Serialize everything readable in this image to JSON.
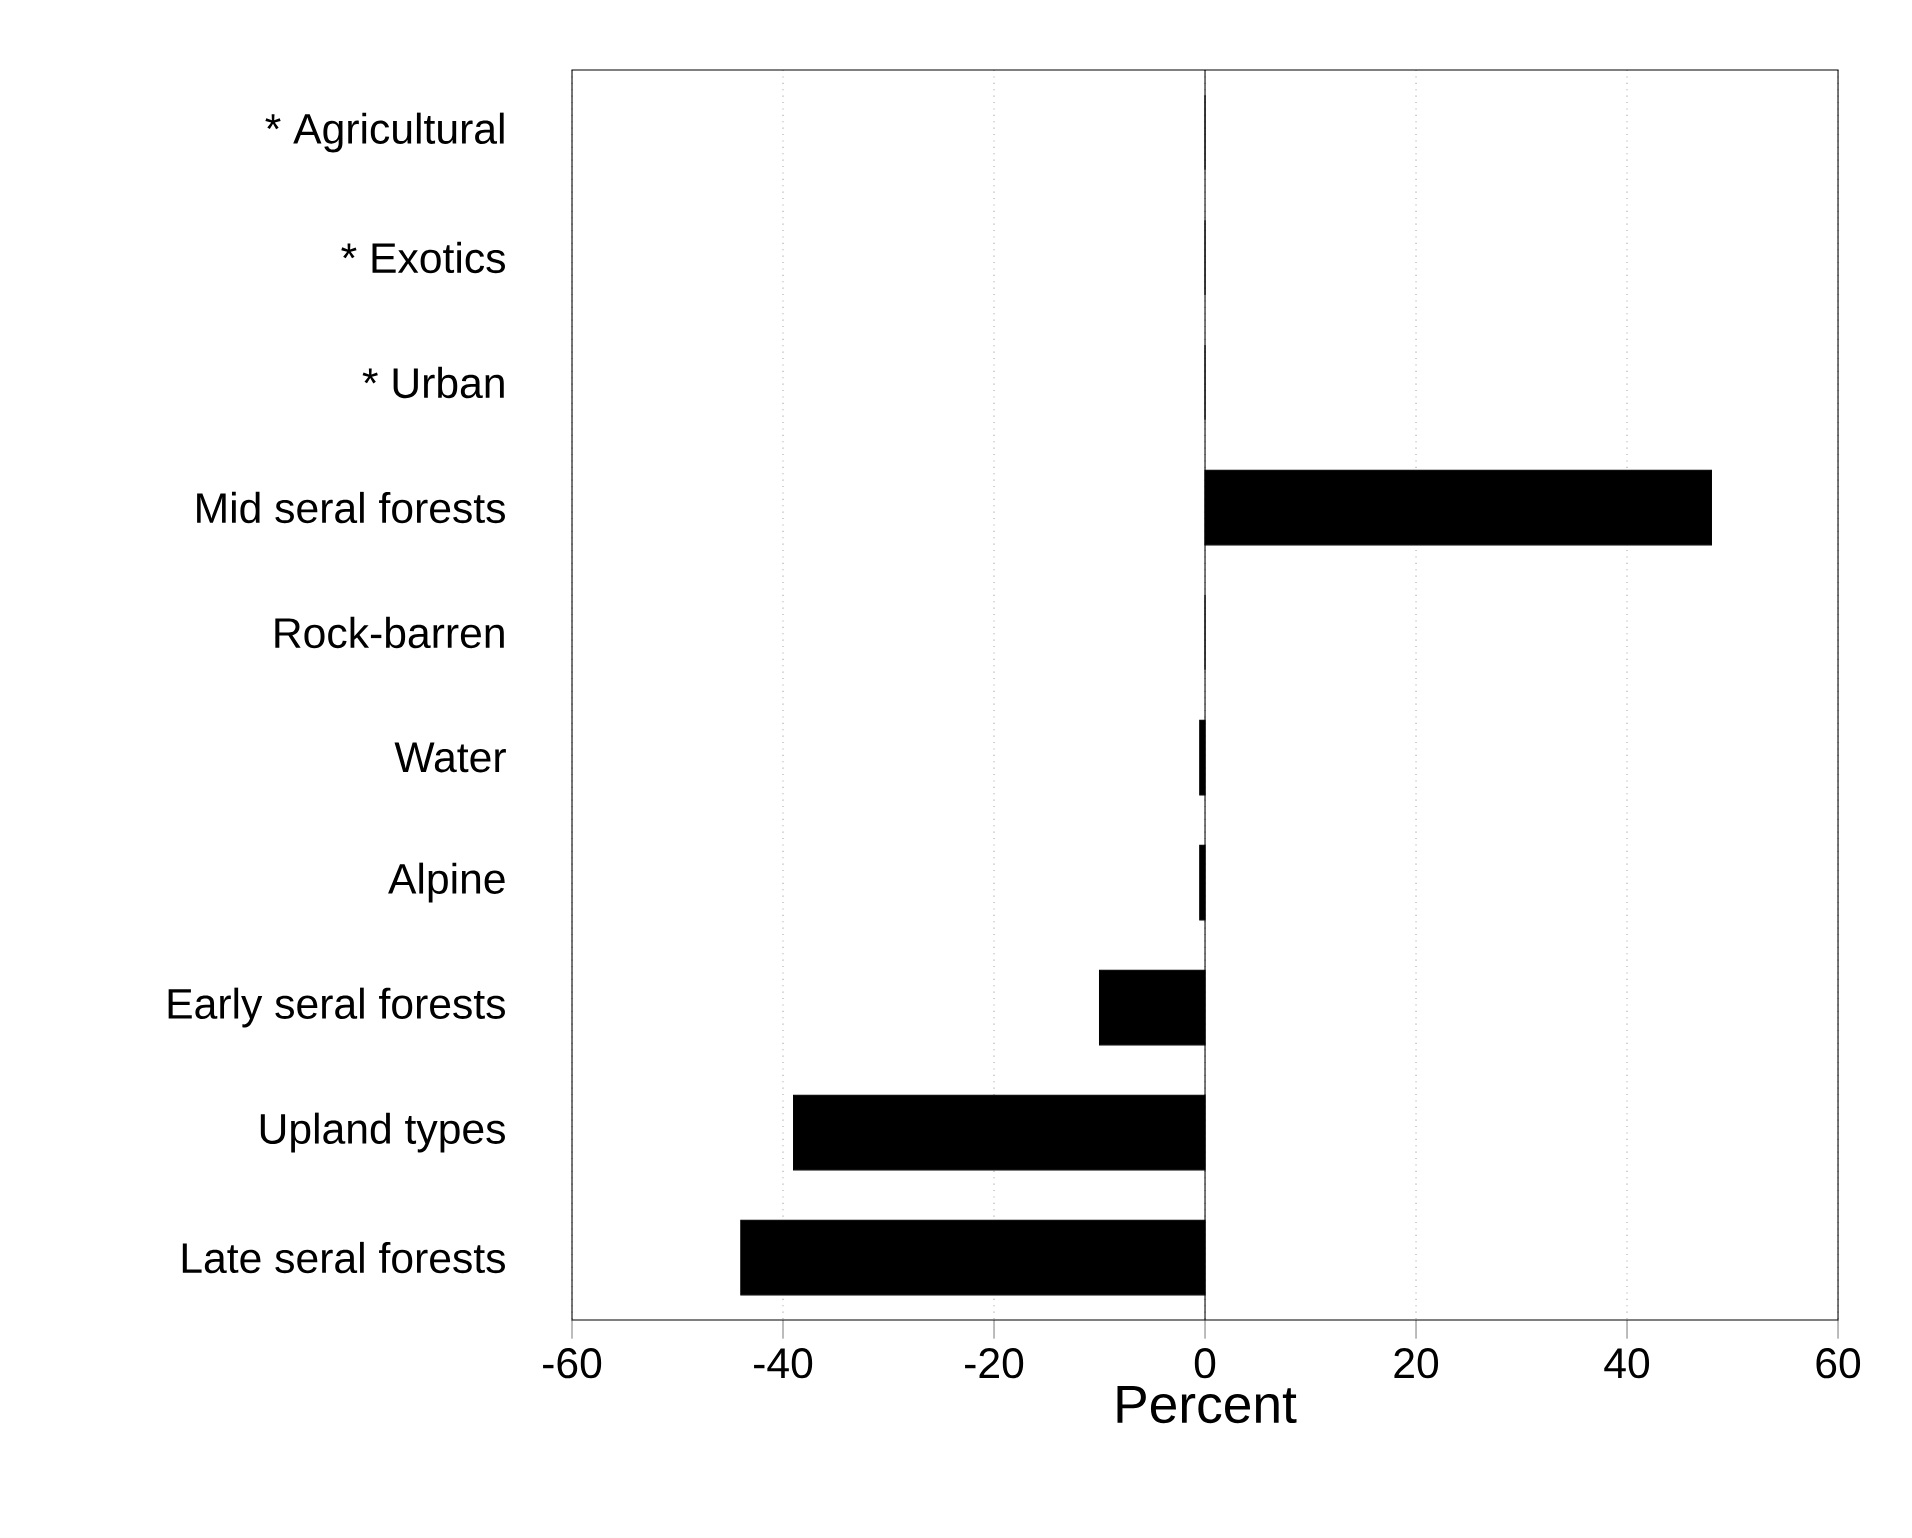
{
  "chart_data": {
    "type": "bar",
    "orientation": "horizontal",
    "categories": [
      "* Agricultural",
      "* Exotics",
      "* Urban",
      "Mid seral forests",
      "Rock-barren",
      "Water",
      "Alpine",
      "Early seral forests",
      "Upland types",
      "Late seral forests"
    ],
    "values": [
      0,
      0,
      0,
      48,
      0,
      -0.5,
      -0.5,
      -10,
      -39,
      -44
    ],
    "color": "#000000",
    "xlabel": "Percent",
    "xlim": [
      -60,
      60
    ],
    "xticks": [
      -60,
      -40,
      -20,
      0,
      20,
      40,
      60
    ],
    "grid": "x"
  }
}
